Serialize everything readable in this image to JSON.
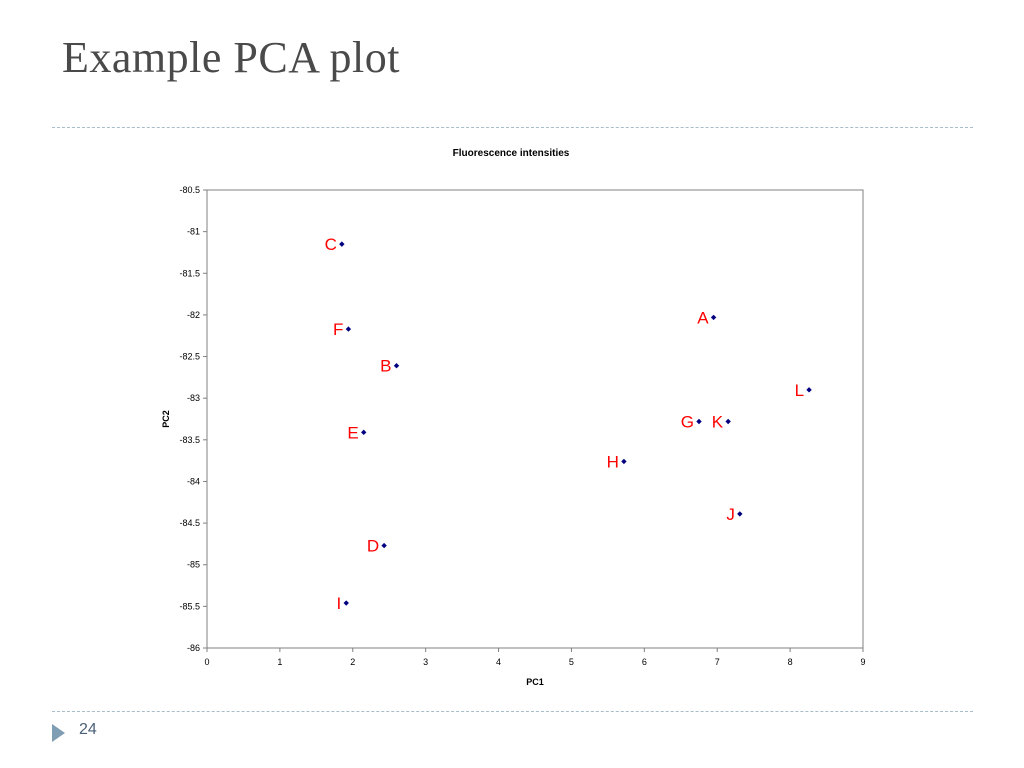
{
  "slide": {
    "title": "Example PCA plot",
    "page_number": "24"
  },
  "colors": {
    "marker": "#000080",
    "point_label": "#ff0000",
    "divider": "#a9bcca",
    "title": "#4a4a4a"
  },
  "icons": [
    "triangle-bullet-icon"
  ],
  "chart_data": {
    "type": "scatter",
    "title": "Fluorescence intensities",
    "xlabel": "PC1",
    "ylabel": "PC2",
    "xlim": [
      0,
      9
    ],
    "ylim": [
      -86,
      -80.5
    ],
    "x_ticks": [
      "0",
      "1",
      "2",
      "3",
      "4",
      "5",
      "6",
      "7",
      "8",
      "9"
    ],
    "y_ticks": [
      "-80.5",
      "-81",
      "-81.5",
      "-82",
      "-82.5",
      "-83",
      "-83.5",
      "-84",
      "-84.5",
      "-85",
      "-85.5",
      "-86"
    ],
    "grid": false,
    "legend": "none",
    "points": [
      {
        "label": "A",
        "x": 6.95,
        "y": -82.03
      },
      {
        "label": "B",
        "x": 2.6,
        "y": -82.61
      },
      {
        "label": "C",
        "x": 1.85,
        "y": -81.15
      },
      {
        "label": "D",
        "x": 2.43,
        "y": -84.77
      },
      {
        "label": "E",
        "x": 2.15,
        "y": -83.41
      },
      {
        "label": "F",
        "x": 1.94,
        "y": -82.17
      },
      {
        "label": "G",
        "x": 6.75,
        "y": -83.28
      },
      {
        "label": "H",
        "x": 5.72,
        "y": -83.76
      },
      {
        "label": "I",
        "x": 1.91,
        "y": -85.46
      },
      {
        "label": "J",
        "x": 7.31,
        "y": -84.39
      },
      {
        "label": "K",
        "x": 7.15,
        "y": -83.28
      },
      {
        "label": "L",
        "x": 8.26,
        "y": -82.9
      }
    ]
  }
}
